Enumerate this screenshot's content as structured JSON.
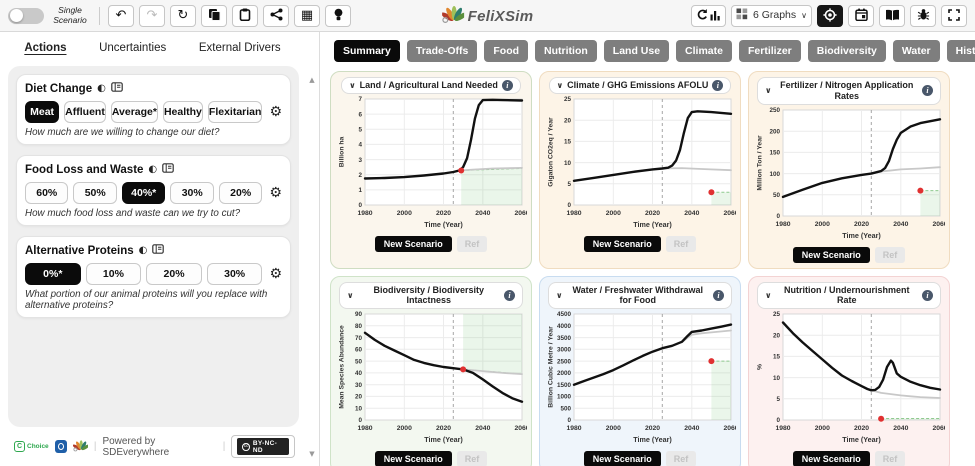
{
  "toolbar": {
    "scenario_label": "Single Scenario",
    "graphs_dropdown": "6 Graphs"
  },
  "logo": {
    "text": "FeliXSim"
  },
  "icons": {
    "undo": "↶",
    "redo": "↷",
    "refresh": "↻",
    "table": "▦",
    "gear": "⚙",
    "contrast": "◐",
    "chevron_down": "∨",
    "info": "i",
    "scroll_up": "▲",
    "scroll_down": "▼"
  },
  "sidebar": {
    "tabs": [
      {
        "label": "Actions",
        "active": true
      },
      {
        "label": "Uncertainties",
        "active": false
      },
      {
        "label": "External Drivers",
        "active": false
      }
    ],
    "actions": [
      {
        "title": "Diet Change",
        "options": [
          "Meat",
          "Affluent",
          "Average*",
          "Healthy",
          "Flexitarian"
        ],
        "active_index": 0,
        "question": "How much are we willing to change our diet?"
      },
      {
        "title": "Food Loss and Waste",
        "options": [
          "60%",
          "50%",
          "40%*",
          "30%",
          "20%"
        ],
        "active_index": 2,
        "question": "How much food loss and waste can we try to cut?"
      },
      {
        "title": "Alternative Proteins",
        "options": [
          "0%*",
          "10%",
          "20%",
          "30%"
        ],
        "active_index": 0,
        "question": "What portion of our animal proteins will you replace with alternative proteins?"
      }
    ],
    "footer": {
      "partner": "Choice",
      "powered_by": "Powered by SDEverywhere",
      "cc": "cc",
      "license": "BY-NC-ND"
    }
  },
  "main": {
    "tabs": [
      {
        "label": "Summary",
        "active": true
      },
      {
        "label": "Trade-Offs",
        "active": false
      },
      {
        "label": "Food",
        "active": false
      },
      {
        "label": "Nutrition",
        "active": false
      },
      {
        "label": "Land Use",
        "active": false
      },
      {
        "label": "Climate",
        "active": false
      },
      {
        "label": "Fertilizer",
        "active": false
      },
      {
        "label": "Biodiversity",
        "active": false
      },
      {
        "label": "Water",
        "active": false
      },
      {
        "label": "Historical",
        "active": false
      }
    ],
    "legend": {
      "new_scenario": "New Scenario",
      "ref": "Ref"
    }
  },
  "chart_data": [
    {
      "type": "line",
      "title": "Land / Agricultural Land Needed",
      "xlabel": "Time (Year)",
      "ylabel": "Billion ha",
      "xlim": [
        1980,
        2060
      ],
      "ylim": [
        0,
        7
      ],
      "ytick_step": 1,
      "xticks": [
        1980,
        2000,
        2020,
        2040,
        2060
      ],
      "current_year_line": 2025,
      "card_bg": "#fbf6ed",
      "card_border": "#cfddc2",
      "series": [
        {
          "name": "New Scenario",
          "color": "#111111",
          "width": 2.4,
          "points": [
            [
              1980,
              1.75
            ],
            [
              1990,
              1.78
            ],
            [
              2000,
              1.84
            ],
            [
              2010,
              1.95
            ],
            [
              2020,
              2.08
            ],
            [
              2025,
              2.18
            ],
            [
              2028,
              2.28
            ],
            [
              2030,
              2.5
            ],
            [
              2032,
              3.1
            ],
            [
              2034,
              4.3
            ],
            [
              2036,
              5.7
            ],
            [
              2038,
              6.6
            ],
            [
              2040,
              6.93
            ],
            [
              2045,
              6.95
            ],
            [
              2050,
              6.93
            ],
            [
              2060,
              6.9
            ]
          ]
        },
        {
          "name": "Ref",
          "color": "#c8c8c8",
          "width": 1.8,
          "points": [
            [
              2028,
              2.28
            ],
            [
              2035,
              2.34
            ],
            [
              2045,
              2.41
            ],
            [
              2060,
              2.45
            ]
          ]
        }
      ],
      "marker": {
        "x": 2029,
        "y": 2.28,
        "color": "#e03131"
      },
      "target_region": {
        "fill": "below",
        "boundary": [
          [
            2029,
            2.28
          ],
          [
            2060,
            2.42
          ]
        ]
      }
    },
    {
      "type": "line",
      "title": "Climate / GHG Emissions AFOLU",
      "xlabel": "Time (Year)",
      "ylabel": "Gigaton CO2eq / Year",
      "xlim": [
        1980,
        2060
      ],
      "ylim": [
        0,
        25
      ],
      "ytick_step": 5,
      "xticks": [
        1980,
        2000,
        2020,
        2040,
        2060
      ],
      "current_year_line": 2025,
      "card_bg": "#fdf4e7",
      "card_border": "#f0dcc0",
      "series": [
        {
          "name": "New Scenario",
          "color": "#111111",
          "width": 2.4,
          "points": [
            [
              1980,
              5.7
            ],
            [
              1990,
              6.4
            ],
            [
              2000,
              7.1
            ],
            [
              2010,
              7.8
            ],
            [
              2020,
              8.4
            ],
            [
              2025,
              8.6
            ],
            [
              2028,
              8.8
            ],
            [
              2030,
              9.3
            ],
            [
              2032,
              10.5
            ],
            [
              2034,
              13
            ],
            [
              2036,
              17
            ],
            [
              2038,
              20.5
            ],
            [
              2040,
              21.9
            ],
            [
              2043,
              22.1
            ],
            [
              2050,
              21.9
            ],
            [
              2060,
              21.5
            ]
          ]
        },
        {
          "name": "Ref",
          "color": "#c8c8c8",
          "width": 1.8,
          "points": [
            [
              2025,
              8.6
            ],
            [
              2035,
              8.7
            ],
            [
              2045,
              8.5
            ],
            [
              2060,
              8.2
            ]
          ]
        }
      ],
      "marker": {
        "x": 2050,
        "y": 3,
        "color": "#e03131"
      },
      "target_region": {
        "fill": "below",
        "boundary": [
          [
            2050,
            3
          ],
          [
            2060,
            3
          ]
        ]
      }
    },
    {
      "type": "line",
      "title": "Fertilizer / Nitrogen Application Rates",
      "xlabel": "Time (Year)",
      "ylabel": "Million Ton / Year",
      "xlim": [
        1980,
        2060
      ],
      "ylim": [
        0,
        250
      ],
      "ytick_step": 50,
      "xticks": [
        1980,
        2000,
        2020,
        2040,
        2060
      ],
      "current_year_line": 2025,
      "card_bg": "#fdf4e7",
      "card_border": "#f0dcc0",
      "series": [
        {
          "name": "New Scenario",
          "color": "#111111",
          "width": 2.4,
          "points": [
            [
              1980,
              45
            ],
            [
              1990,
              62
            ],
            [
              2000,
              78
            ],
            [
              2010,
              89
            ],
            [
              2020,
              97
            ],
            [
              2025,
              100
            ],
            [
              2030,
              106
            ],
            [
              2032,
              113
            ],
            [
              2034,
              130
            ],
            [
              2036,
              158
            ],
            [
              2038,
              180
            ],
            [
              2040,
              196
            ],
            [
              2045,
              211
            ],
            [
              2050,
              219
            ],
            [
              2060,
              228
            ]
          ]
        },
        {
          "name": "Ref",
          "color": "#c8c8c8",
          "width": 1.8,
          "points": [
            [
              2025,
              100
            ],
            [
              2030,
              105
            ],
            [
              2040,
              110
            ],
            [
              2050,
              112
            ],
            [
              2060,
              115
            ]
          ]
        }
      ],
      "marker": {
        "x": 2050,
        "y": 60,
        "color": "#e03131"
      },
      "target_region": {
        "fill": "below",
        "boundary": [
          [
            2050,
            60
          ],
          [
            2060,
            60
          ]
        ]
      }
    },
    {
      "type": "line",
      "title": "Biodiversity / Biodiversity Intactness",
      "xlabel": "Time (Year)",
      "ylabel": "Mean Species Abundance",
      "xlim": [
        1980,
        2060
      ],
      "ylim": [
        0,
        90
      ],
      "ytick_step": 10,
      "xticks": [
        1980,
        2000,
        2020,
        2040,
        2060
      ],
      "current_year_line": 2025,
      "card_bg": "#f3f8f0",
      "card_border": "#cfe3c8",
      "series": [
        {
          "name": "New Scenario",
          "color": "#111111",
          "width": 2.4,
          "points": [
            [
              1980,
              74
            ],
            [
              1985,
              68
            ],
            [
              1990,
              63
            ],
            [
              1995,
              59
            ],
            [
              2000,
              55
            ],
            [
              2005,
              51
            ],
            [
              2010,
              48.5
            ],
            [
              2015,
              46.5
            ],
            [
              2020,
              45
            ],
            [
              2025,
              44
            ],
            [
              2030,
              43
            ],
            [
              2035,
              40
            ],
            [
              2040,
              34.5
            ],
            [
              2045,
              28.5
            ],
            [
              2050,
              23
            ],
            [
              2055,
              18.5
            ],
            [
              2060,
              15.5
            ]
          ]
        },
        {
          "name": "Ref",
          "color": "#c8c8c8",
          "width": 1.8,
          "points": [
            [
              2030,
              43
            ],
            [
              2040,
              41.5
            ],
            [
              2050,
              40
            ],
            [
              2060,
              39
            ]
          ]
        }
      ],
      "marker": {
        "x": 2030,
        "y": 43,
        "color": "#e03131"
      },
      "target_region": {
        "fill": "above",
        "boundary": [
          [
            2030,
            43
          ],
          [
            2060,
            39
          ]
        ]
      }
    },
    {
      "type": "line",
      "title": "Water / Freshwater Withdrawal for Food",
      "xlabel": "Time (Year)",
      "ylabel": "Billion Cubic Metre / Year",
      "xlim": [
        1980,
        2060
      ],
      "ylim": [
        0,
        4500
      ],
      "ytick_step": 500,
      "xticks": [
        1980,
        2000,
        2020,
        2040,
        2060
      ],
      "current_year_line": 2025,
      "card_bg": "#eff5fb",
      "card_border": "#c8dcf0",
      "series": [
        {
          "name": "New Scenario",
          "color": "#111111",
          "width": 2.4,
          "points": [
            [
              1980,
              1500
            ],
            [
              1985,
              1650
            ],
            [
              1990,
              1800
            ],
            [
              1995,
              1950
            ],
            [
              2000,
              2120
            ],
            [
              2005,
              2320
            ],
            [
              2010,
              2520
            ],
            [
              2015,
              2720
            ],
            [
              2020,
              2900
            ],
            [
              2025,
              3050
            ],
            [
              2030,
              3150
            ],
            [
              2035,
              3320
            ],
            [
              2038,
              3580
            ],
            [
              2040,
              3740
            ],
            [
              2045,
              3800
            ],
            [
              2050,
              3880
            ],
            [
              2055,
              3960
            ],
            [
              2060,
              4050
            ]
          ]
        },
        {
          "name": "Ref",
          "color": "#c8c8c8",
          "width": 1.8,
          "points": [
            [
              2035,
              3300
            ],
            [
              2038,
              3500
            ],
            [
              2040,
              3620
            ],
            [
              2045,
              3680
            ],
            [
              2050,
              3720
            ],
            [
              2060,
              3800
            ]
          ]
        }
      ],
      "marker": {
        "x": 2050,
        "y": 2500,
        "color": "#e03131"
      },
      "target_region": {
        "fill": "below",
        "boundary": [
          [
            2050,
            2500
          ],
          [
            2060,
            2500
          ]
        ]
      }
    },
    {
      "type": "line",
      "title": "Nutrition / Undernourishment Rate",
      "xlabel": "Time (Year)",
      "ylabel": "%",
      "xlim": [
        1980,
        2060
      ],
      "ylim": [
        0,
        25
      ],
      "ytick_step": 5,
      "xticks": [
        1980,
        2000,
        2020,
        2040,
        2060
      ],
      "current_year_line": 2025,
      "card_bg": "#fdf1f0",
      "card_border": "#f3d3d3",
      "series": [
        {
          "name": "New Scenario",
          "color": "#111111",
          "width": 2.4,
          "points": [
            [
              1980,
              23
            ],
            [
              1985,
              20.5
            ],
            [
              1990,
              18.3
            ],
            [
              1995,
              16.3
            ],
            [
              2000,
              14.3
            ],
            [
              2005,
              12.3
            ],
            [
              2010,
              10.5
            ],
            [
              2015,
              9.2
            ],
            [
              2020,
              8
            ],
            [
              2023,
              7.3
            ],
            [
              2025,
              7
            ],
            [
              2027,
              7.1
            ],
            [
              2029,
              7.8
            ],
            [
              2031,
              9.5
            ],
            [
              2033,
              12.5
            ],
            [
              2035,
              14
            ],
            [
              2036,
              13.5
            ],
            [
              2038,
              11
            ],
            [
              2040,
              10.2
            ],
            [
              2045,
              9
            ],
            [
              2050,
              8.2
            ],
            [
              2055,
              7.6
            ],
            [
              2060,
              7.2
            ]
          ]
        },
        {
          "name": "Ref",
          "color": "#c8c8c8",
          "width": 1.8,
          "points": [
            [
              2025,
              7
            ],
            [
              2030,
              6.4
            ],
            [
              2035,
              6.1
            ],
            [
              2040,
              5.8
            ],
            [
              2045,
              5.6
            ],
            [
              2050,
              5.4
            ],
            [
              2060,
              5.2
            ]
          ]
        }
      ],
      "marker": {
        "x": 2030,
        "y": 0.3,
        "color": "#e03131"
      },
      "target_region": {
        "fill": "below",
        "boundary": [
          [
            2030,
            0.35
          ],
          [
            2060,
            0.35
          ]
        ]
      }
    }
  ]
}
